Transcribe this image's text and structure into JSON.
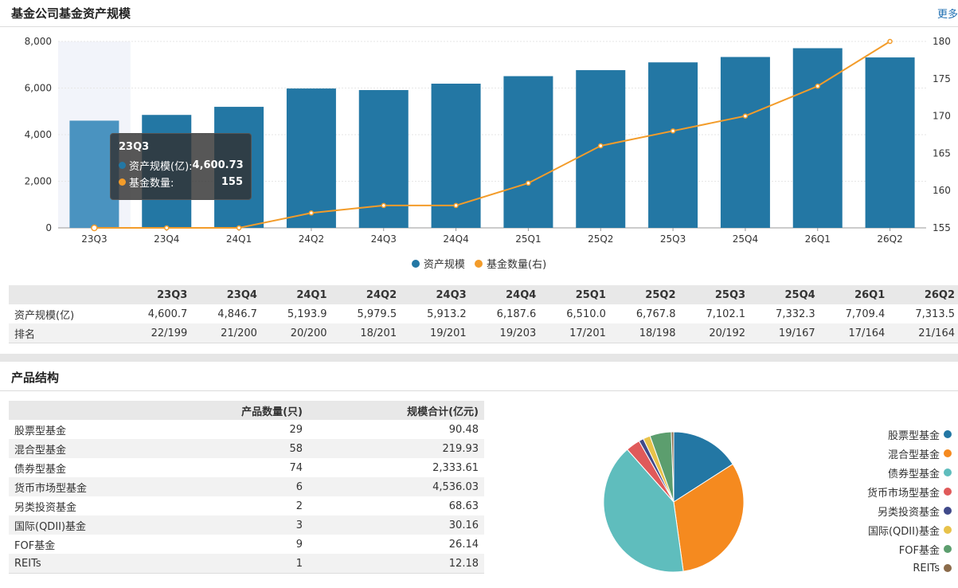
{
  "header": {
    "title": "基金公司基金资产规模",
    "more_label": "更多"
  },
  "chart_data": {
    "type": "bar",
    "categories": [
      "23Q3",
      "23Q4",
      "24Q1",
      "24Q2",
      "24Q3",
      "24Q4",
      "25Q1",
      "25Q2",
      "25Q3",
      "25Q4",
      "26Q1",
      "26Q2"
    ],
    "series": [
      {
        "name": "资产规模",
        "type": "bar",
        "axis": "left",
        "color": "#2377a4",
        "values": [
          4600.7,
          4846.7,
          5193.9,
          5979.5,
          5913.2,
          6187.6,
          6510.0,
          6767.8,
          7102.1,
          7332.3,
          7709.4,
          7313.5
        ]
      },
      {
        "name": "基金数量(右)",
        "type": "line",
        "axis": "right",
        "color": "#f39c2a",
        "values": [
          155,
          155,
          155,
          157,
          158,
          158,
          161,
          166,
          168,
          170,
          174,
          180
        ]
      }
    ],
    "ylim_left": [
      0,
      8000
    ],
    "yticks_left": [
      "0",
      "2,000",
      "4,000",
      "6,000",
      "8,000"
    ],
    "ylim_right": [
      155,
      180
    ],
    "yticks_right": [
      "155",
      "160",
      "165",
      "170",
      "175",
      "180"
    ],
    "grid": true,
    "highlight_index": 0,
    "tooltip": {
      "title": "23Q3",
      "row1_name": "资产规模(亿):",
      "row1_value": "4,600.73",
      "row2_name": "基金数量:",
      "row2_value": "155"
    },
    "legend": [
      "资产规模",
      "基金数量(右)"
    ]
  },
  "table1": {
    "headers": [
      "",
      "23Q3",
      "23Q4",
      "24Q1",
      "24Q2",
      "24Q3",
      "24Q4",
      "25Q1",
      "25Q2",
      "25Q3",
      "25Q4",
      "26Q1",
      "26Q2"
    ],
    "rows": [
      [
        "资产规模(亿)",
        "4,600.7",
        "4,846.7",
        "5,193.9",
        "5,979.5",
        "5,913.2",
        "6,187.6",
        "6,510.0",
        "6,767.8",
        "7,102.1",
        "7,332.3",
        "7,709.4",
        "7,313.5"
      ],
      [
        "排名",
        "22/199",
        "21/200",
        "20/200",
        "18/201",
        "19/201",
        "19/203",
        "17/201",
        "18/198",
        "20/192",
        "19/167",
        "17/164",
        "21/164"
      ]
    ]
  },
  "product": {
    "title": "产品结构",
    "headers": [
      "",
      "产品数量(只)",
      "规模合计(亿元)"
    ],
    "rows": [
      [
        "股票型基金",
        "29",
        "90.48"
      ],
      [
        "混合型基金",
        "58",
        "219.93"
      ],
      [
        "债券型基金",
        "74",
        "2,333.61"
      ],
      [
        "货币市场型基金",
        "6",
        "4,536.03"
      ],
      [
        "另类投资基金",
        "2",
        "68.63"
      ],
      [
        "国际(QDII)基金",
        "3",
        "30.16"
      ],
      [
        "FOF基金",
        "9",
        "26.14"
      ],
      [
        "REITs",
        "1",
        "12.18"
      ]
    ]
  },
  "pie_data": {
    "type": "pie",
    "labels": [
      "股票型基金",
      "混合型基金",
      "债券型基金",
      "货币市场型基金",
      "另类投资基金",
      "国际(QDII)基金",
      "FOF基金",
      "REITs"
    ],
    "values": [
      29,
      58,
      74,
      6,
      2,
      3,
      9,
      1
    ],
    "colors": [
      "#2377a4",
      "#f58a1f",
      "#5fbdbd",
      "#e05a5a",
      "#404a8a",
      "#e8c24a",
      "#5c9e6e",
      "#8b6b4a"
    ]
  }
}
